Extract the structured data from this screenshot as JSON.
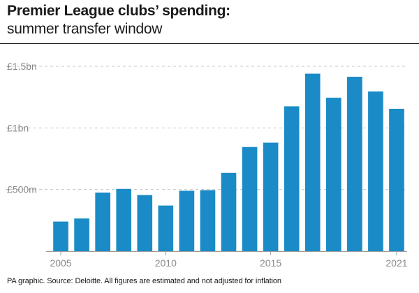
{
  "header": {
    "title": "Premier League clubs’ spending:",
    "subtitle": "summer transfer window"
  },
  "footer": {
    "source": "PA graphic. Source: Deloitte. All figures are estimated and not adjusted for inflation"
  },
  "colors": {
    "bar": "#1a8bc6",
    "grid": "#c8c8c8",
    "axis": "#9a9a9a",
    "tick_text": "#8a8a8a"
  },
  "chart_data": {
    "type": "bar",
    "x": [
      2005,
      2006,
      2007,
      2008,
      2009,
      2010,
      2011,
      2012,
      2013,
      2014,
      2015,
      2016,
      2017,
      2018,
      2019,
      2020,
      2021
    ],
    "values": [
      240,
      265,
      475,
      505,
      455,
      370,
      490,
      495,
      635,
      845,
      880,
      1175,
      1440,
      1245,
      1415,
      1295,
      1155
    ],
    "unit": "£m",
    "ylim": [
      0,
      1500
    ],
    "y_ticks": [
      {
        "value": 500,
        "label": "£500m"
      },
      {
        "value": 1000,
        "label": "£1bn"
      },
      {
        "value": 1500,
        "label": "£1.5bn"
      }
    ],
    "x_ticks": [
      {
        "value": 2005,
        "label": "2005"
      },
      {
        "value": 2010,
        "label": "2010"
      },
      {
        "value": 2015,
        "label": "2015"
      },
      {
        "value": 2021,
        "label": "2021"
      }
    ],
    "grid": true,
    "legend": false
  }
}
